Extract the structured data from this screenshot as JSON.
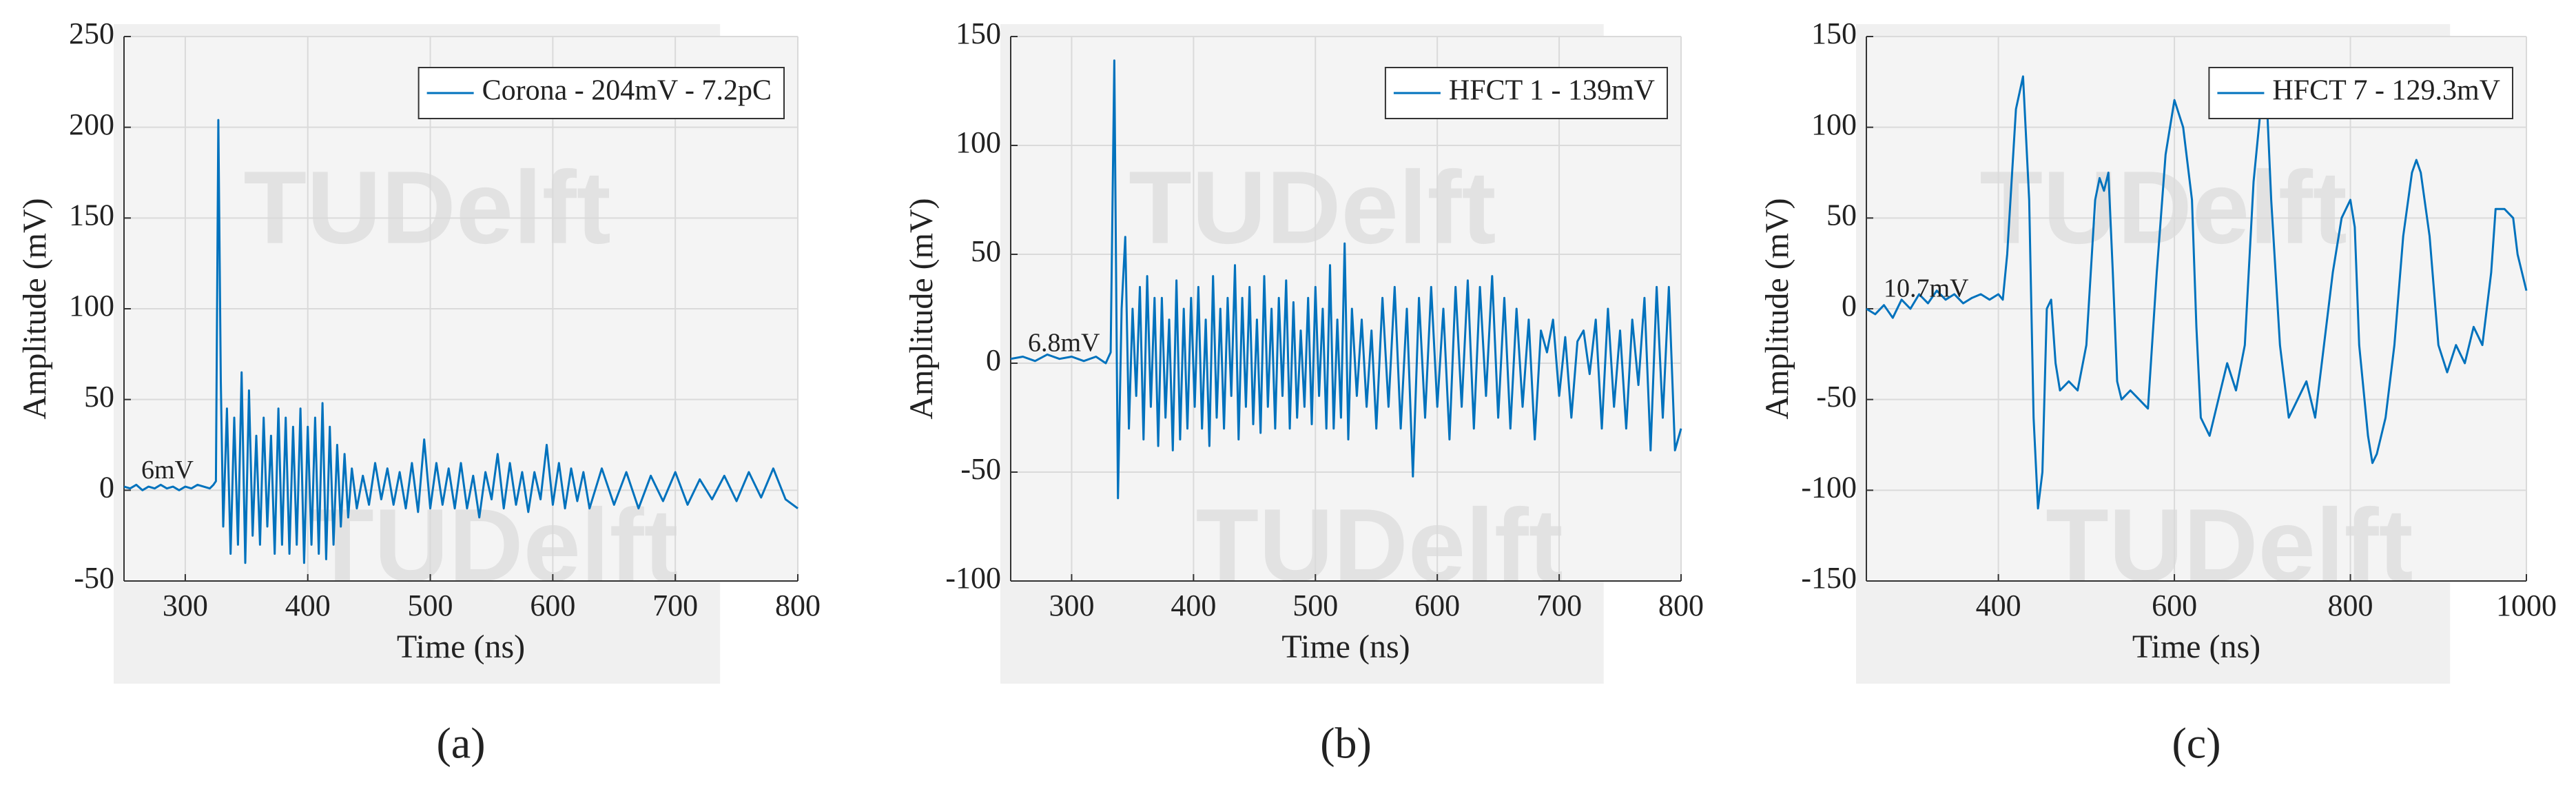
{
  "chart_data": [
    {
      "type": "line",
      "caption": "(a)",
      "xlabel": "Time (ns)",
      "ylabel": "Amplitude (mV)",
      "annotation": "6mV",
      "watermark": "TUDelft",
      "x": [
        250,
        255,
        260,
        265,
        270,
        275,
        280,
        285,
        290,
        295,
        300,
        305,
        310,
        315,
        320,
        323,
        325,
        327,
        329,
        331,
        334,
        337,
        340,
        343,
        346,
        349,
        352,
        355,
        358,
        361,
        364,
        367,
        370,
        373,
        376,
        379,
        382,
        385,
        388,
        391,
        394,
        397,
        400,
        403,
        406,
        409,
        412,
        415,
        418,
        421,
        424,
        427,
        430,
        433,
        436,
        440,
        445,
        450,
        455,
        460,
        465,
        470,
        475,
        480,
        485,
        490,
        495,
        500,
        505,
        510,
        515,
        520,
        525,
        530,
        535,
        540,
        545,
        550,
        555,
        560,
        565,
        570,
        575,
        580,
        585,
        590,
        595,
        600,
        605,
        610,
        615,
        620,
        625,
        630,
        640,
        650,
        660,
        670,
        680,
        690,
        700,
        710,
        720,
        730,
        740,
        750,
        760,
        770,
        780,
        790,
        800
      ],
      "series": [
        {
          "name": "Corona - 204mV - 7.2pC",
          "color": "#0072bd",
          "values": [
            2,
            1,
            3,
            0,
            2,
            1,
            3,
            1,
            2,
            0,
            2,
            1,
            3,
            2,
            1,
            3,
            5,
            204,
            60,
            -20,
            45,
            -35,
            40,
            -30,
            65,
            -40,
            55,
            -25,
            30,
            -30,
            40,
            -20,
            30,
            -35,
            45,
            -30,
            40,
            -35,
            35,
            -30,
            45,
            -40,
            35,
            -30,
            40,
            -35,
            48,
            -38,
            35,
            -30,
            25,
            -20,
            20,
            -15,
            12,
            -10,
            8,
            -8,
            15,
            -5,
            12,
            -8,
            10,
            -10,
            15,
            -12,
            28,
            -10,
            15,
            -8,
            12,
            -10,
            15,
            -10,
            8,
            -15,
            10,
            -5,
            20,
            -10,
            15,
            -8,
            10,
            -12,
            10,
            -5,
            25,
            -8,
            15,
            -10,
            12,
            -6,
            10,
            -10,
            12,
            -8,
            10,
            -10,
            8,
            -6,
            10,
            -8,
            6,
            -5,
            8,
            -6,
            10,
            -4,
            12,
            -5,
            -10
          ]
        }
      ],
      "xlim": [
        250,
        800
      ],
      "ylim": [
        -50,
        250
      ],
      "xticks": [
        300,
        400,
        500,
        600,
        700,
        800
      ],
      "yticks": [
        -50,
        0,
        50,
        100,
        150,
        200,
        250
      ],
      "grid": true,
      "legend": "upper right"
    },
    {
      "type": "line",
      "caption": "(b)",
      "xlabel": "Time (ns)",
      "ylabel": "Amplitude (mV)",
      "annotation": "6.8mV",
      "watermark": "TUDelft",
      "x": [
        250,
        260,
        270,
        280,
        290,
        300,
        310,
        320,
        328,
        332,
        335,
        338,
        341,
        344,
        347,
        350,
        353,
        356,
        359,
        362,
        365,
        368,
        371,
        374,
        377,
        380,
        383,
        386,
        389,
        392,
        395,
        398,
        401,
        404,
        407,
        410,
        413,
        416,
        419,
        422,
        425,
        428,
        431,
        434,
        437,
        440,
        443,
        446,
        449,
        452,
        455,
        458,
        461,
        464,
        467,
        470,
        473,
        476,
        479,
        482,
        485,
        488,
        491,
        494,
        497,
        500,
        503,
        506,
        509,
        512,
        515,
        518,
        521,
        524,
        527,
        530,
        534,
        538,
        542,
        546,
        550,
        555,
        560,
        565,
        570,
        575,
        580,
        585,
        590,
        595,
        600,
        605,
        610,
        615,
        620,
        625,
        630,
        635,
        640,
        645,
        650,
        655,
        660,
        665,
        670,
        675,
        680,
        685,
        690,
        695,
        700,
        705,
        710,
        715,
        720,
        725,
        730,
        735,
        740,
        745,
        750,
        755,
        760,
        765,
        770,
        775,
        780,
        785,
        790,
        795,
        800
      ],
      "series": [
        {
          "name": "HFCT 1 - 139mV",
          "color": "#0072bd",
          "values": [
            2,
            3,
            1,
            4,
            2,
            3,
            1,
            3,
            0,
            5,
            139,
            -62,
            25,
            58,
            -30,
            25,
            -15,
            35,
            -35,
            40,
            -20,
            30,
            -38,
            30,
            -25,
            20,
            -40,
            38,
            -35,
            25,
            -30,
            30,
            -20,
            35,
            -30,
            20,
            -38,
            40,
            -25,
            25,
            -30,
            30,
            -15,
            45,
            -35,
            30,
            -20,
            35,
            -28,
            20,
            -32,
            40,
            -20,
            25,
            -30,
            30,
            -15,
            38,
            -30,
            28,
            -25,
            15,
            -20,
            30,
            -28,
            35,
            -15,
            25,
            -30,
            45,
            -30,
            20,
            -25,
            55,
            -35,
            25,
            -15,
            20,
            -20,
            15,
            -30,
            30,
            -20,
            35,
            -30,
            25,
            -52,
            30,
            -25,
            35,
            -20,
            25,
            -35,
            35,
            -20,
            38,
            -30,
            35,
            -15,
            40,
            -25,
            30,
            -30,
            25,
            -20,
            20,
            -35,
            15,
            5,
            20,
            -15,
            12,
            -25,
            10,
            15,
            -5,
            20,
            -30,
            25,
            -20,
            15,
            -30,
            20,
            -10,
            30,
            -40,
            35,
            -25,
            35,
            -40,
            -30
          ]
        }
      ],
      "xlim": [
        250,
        800
      ],
      "ylim": [
        -100,
        150
      ],
      "xticks": [
        300,
        400,
        500,
        600,
        700,
        800
      ],
      "yticks": [
        -100,
        -50,
        0,
        50,
        100,
        150
      ],
      "grid": true,
      "legend": "upper right"
    },
    {
      "type": "line",
      "caption": "(c)",
      "xlabel": "Time (ns)",
      "ylabel": "Amplitude (mV)",
      "annotation": "10.7mV",
      "watermark": "TUDelft",
      "x": [
        250,
        260,
        270,
        280,
        290,
        300,
        310,
        320,
        330,
        340,
        350,
        360,
        370,
        380,
        390,
        400,
        405,
        410,
        420,
        428,
        435,
        440,
        445,
        450,
        455,
        460,
        465,
        470,
        480,
        490,
        500,
        510,
        515,
        520,
        525,
        530,
        535,
        540,
        550,
        560,
        570,
        580,
        590,
        600,
        610,
        620,
        625,
        630,
        640,
        650,
        660,
        670,
        680,
        690,
        700,
        705,
        710,
        720,
        730,
        740,
        750,
        760,
        770,
        780,
        790,
        800,
        805,
        810,
        820,
        825,
        830,
        840,
        850,
        860,
        870,
        875,
        880,
        890,
        900,
        910,
        920,
        930,
        940,
        950,
        960,
        965,
        975,
        985,
        990,
        1000
      ],
      "series": [
        {
          "name": "HFCT 7 - 129.3mV",
          "color": "#0072bd",
          "values": [
            0,
            -3,
            2,
            -5,
            5,
            0,
            8,
            3,
            10,
            5,
            8,
            3,
            6,
            8,
            5,
            8,
            5,
            30,
            110,
            128,
            60,
            -60,
            -110,
            -90,
            0,
            5,
            -30,
            -45,
            -40,
            -45,
            -20,
            60,
            72,
            65,
            75,
            20,
            -40,
            -50,
            -45,
            -50,
            -55,
            20,
            85,
            115,
            100,
            60,
            -10,
            -60,
            -70,
            -50,
            -30,
            -45,
            -20,
            70,
            120,
            115,
            60,
            -20,
            -60,
            -50,
            -40,
            -60,
            -20,
            20,
            50,
            60,
            45,
            -20,
            -70,
            -85,
            -80,
            -60,
            -20,
            40,
            75,
            82,
            75,
            40,
            -20,
            -35,
            -20,
            -30,
            -10,
            -20,
            20,
            55,
            55,
            50,
            30,
            10
          ]
        }
      ],
      "xlim": [
        250,
        1000
      ],
      "ylim": [
        -150,
        150
      ],
      "xticks": [
        400,
        600,
        800,
        1000
      ],
      "yticks": [
        -150,
        -100,
        -50,
        0,
        50,
        100,
        150
      ],
      "grid": true,
      "legend": "upper right"
    }
  ]
}
